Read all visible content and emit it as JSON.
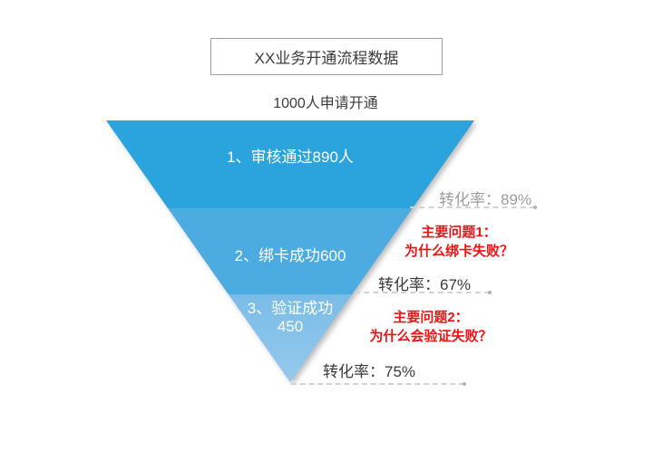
{
  "chart_data": {
    "type": "funnel",
    "title": "XX业务开通流程数据",
    "entry": {
      "label": "1000人申请开通",
      "value": 1000
    },
    "stages": [
      {
        "name": "审核通过",
        "label": "1、审核通过890人",
        "value": 890,
        "color": "#2BA4DD",
        "conversion_label": "转化率：89%",
        "conversion_rate_pct": 89
      },
      {
        "name": "绑卡成功",
        "label": "2、绑卡成功600",
        "value": 600,
        "color": "#4CACE2",
        "conversion_label": "转化率：67%",
        "conversion_rate_pct": 67
      },
      {
        "name": "验证成功",
        "label": "3、验证成功",
        "value_label": "450",
        "value": 450,
        "color": "#80BFE8",
        "conversion_label": "转化率：75%",
        "conversion_rate_pct": 75
      }
    ],
    "annotations": [
      {
        "lines": [
          "主要问题1：",
          "为什么绑卡失败？"
        ],
        "color": "#F01212"
      },
      {
        "lines": [
          "主要问题2：",
          "为什么会验证失败？"
        ],
        "color": "#F01212"
      }
    ],
    "colors": {
      "stage1": "#2BA4DD",
      "stage2": "#4CACE2",
      "stage3": "#80BFE8",
      "annotation_red": "#F01212",
      "rate_muted": "#9C9C9C",
      "rate_dark": "#3A3A3A"
    },
    "layout": {
      "legend": "none",
      "grid": false,
      "orientation": "inverted-triangle"
    }
  }
}
